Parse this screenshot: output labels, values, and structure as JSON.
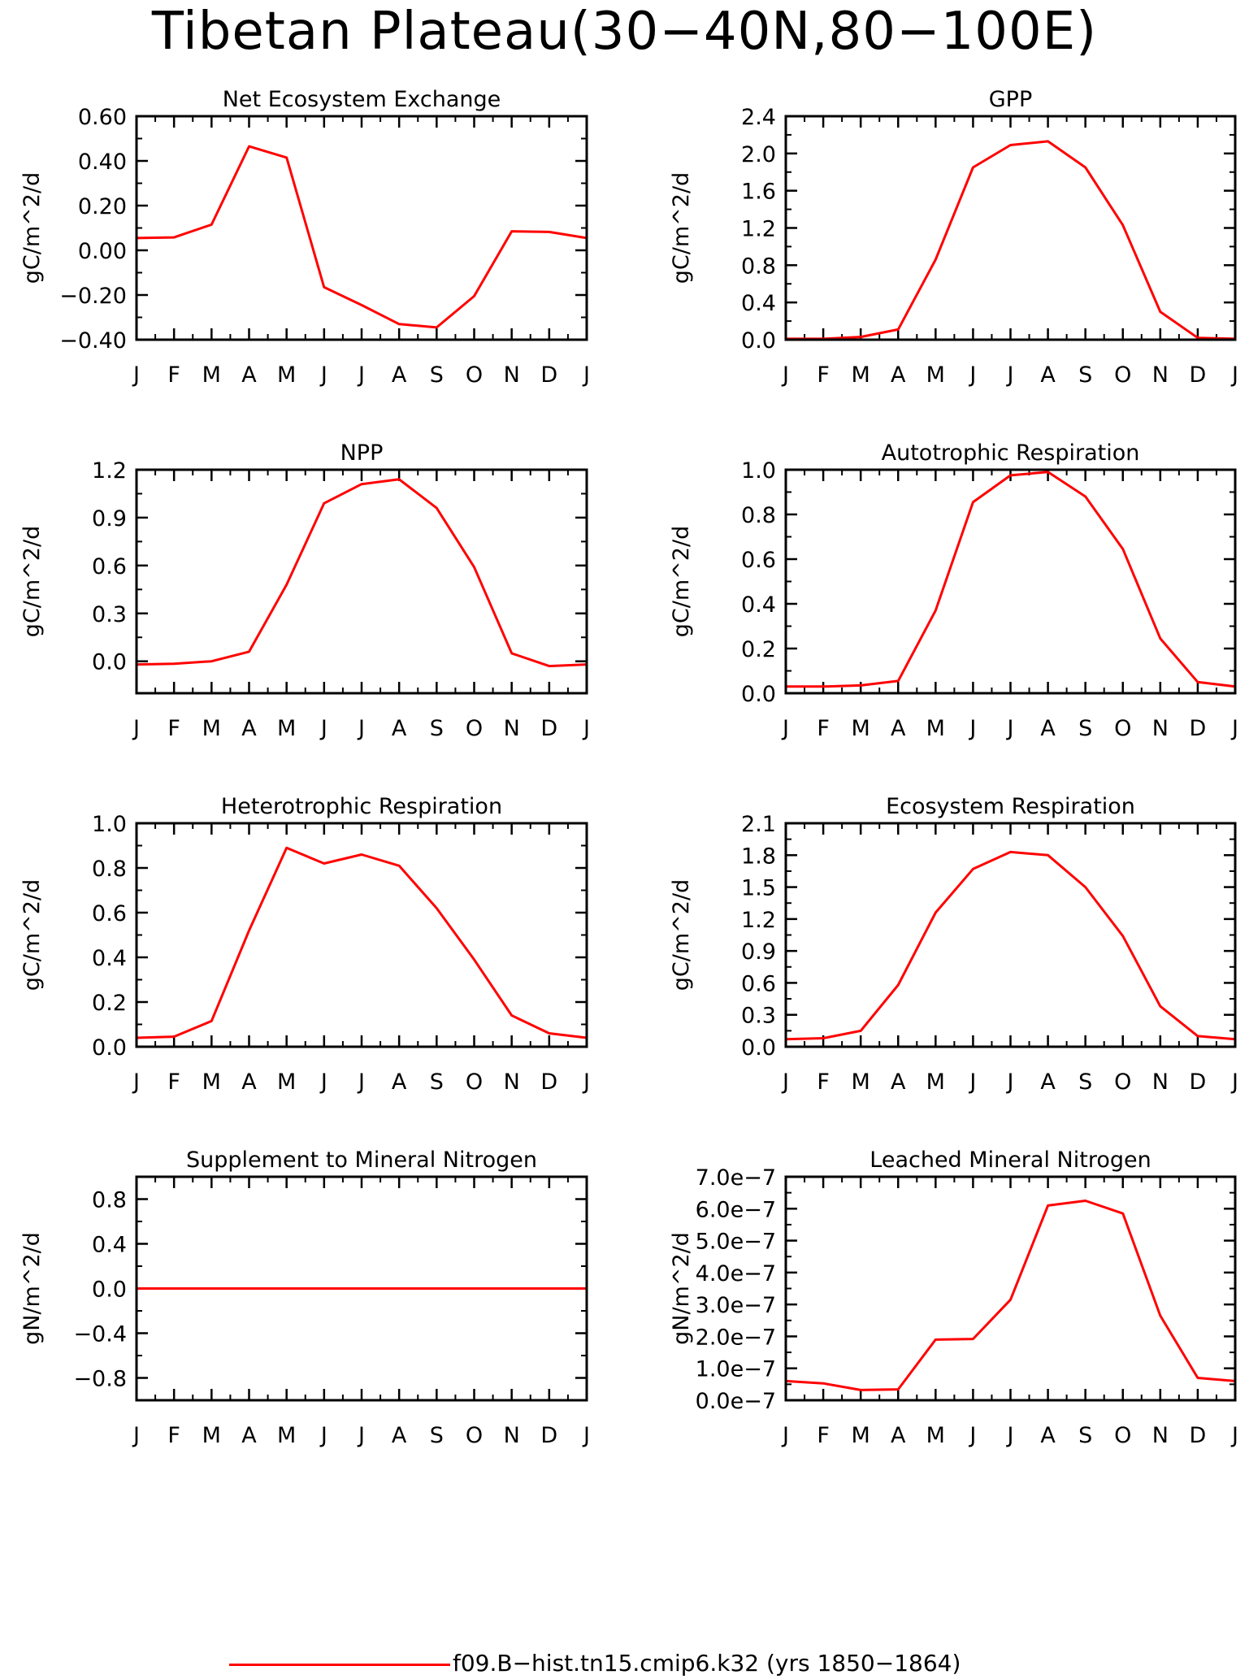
{
  "figure": {
    "title": "Tibetan Plateau(30−40N,80−100E)",
    "line_color": "#ff0000",
    "legend_label": "f09.B−hist.tn15.cmip6.k32 (yrs 1850−1864)"
  },
  "chart_data": [
    {
      "type": "line",
      "title": "Net Ecosystem Exchange",
      "ylabel": "gC/m^2/d",
      "categories": [
        "J",
        "F",
        "M",
        "A",
        "M",
        "J",
        "J",
        "A",
        "S",
        "O",
        "N",
        "D",
        "J"
      ],
      "yticks": [
        "0.60",
        "0.40",
        "0.20",
        "0.00",
        "−0.20",
        "−0.40"
      ],
      "ylim": [
        -0.4,
        0.6
      ],
      "series": [
        {
          "values": [
            0.055,
            0.058,
            0.115,
            0.465,
            0.415,
            -0.165,
            -0.245,
            -0.33,
            -0.345,
            -0.205,
            0.085,
            0.082,
            0.055
          ]
        }
      ]
    },
    {
      "type": "line",
      "title": "GPP",
      "ylabel": "gC/m^2/d",
      "categories": [
        "J",
        "F",
        "M",
        "A",
        "M",
        "J",
        "J",
        "A",
        "S",
        "O",
        "N",
        "D",
        "J"
      ],
      "yticks": [
        "2.4",
        "2.0",
        "1.6",
        "1.2",
        "0.8",
        "0.4",
        "0.0"
      ],
      "ylim": [
        0,
        2.4
      ],
      "series": [
        {
          "values": [
            0.01,
            0.01,
            0.03,
            0.11,
            0.86,
            1.85,
            2.09,
            2.13,
            1.85,
            1.23,
            0.3,
            0.02,
            0.01
          ]
        }
      ]
    },
    {
      "type": "line",
      "title": "NPP",
      "ylabel": "gC/m^2/d",
      "categories": [
        "J",
        "F",
        "M",
        "A",
        "M",
        "J",
        "J",
        "A",
        "S",
        "O",
        "N",
        "D",
        "J"
      ],
      "yticks": [
        "1.2",
        "0.9",
        "0.6",
        "0.3",
        "0.0"
      ],
      "ylim": [
        -0.2,
        1.2
      ],
      "series": [
        {
          "values": [
            -0.02,
            -0.015,
            0.0,
            0.06,
            0.48,
            0.99,
            1.11,
            1.14,
            0.96,
            0.59,
            0.05,
            -0.03,
            -0.02
          ]
        }
      ]
    },
    {
      "type": "line",
      "title": "Autotrophic Respiration",
      "ylabel": "gC/m^2/d",
      "categories": [
        "J",
        "F",
        "M",
        "A",
        "M",
        "J",
        "J",
        "A",
        "S",
        "O",
        "N",
        "D",
        "J"
      ],
      "yticks": [
        "1.0",
        "0.8",
        "0.6",
        "0.4",
        "0.2",
        "0.0"
      ],
      "ylim": [
        0,
        1.0
      ],
      "series": [
        {
          "values": [
            0.03,
            0.03,
            0.035,
            0.055,
            0.37,
            0.855,
            0.975,
            0.99,
            0.88,
            0.645,
            0.245,
            0.05,
            0.03
          ]
        }
      ]
    },
    {
      "type": "line",
      "title": "Heterotrophic Respiration",
      "ylabel": "gC/m^2/d",
      "categories": [
        "J",
        "F",
        "M",
        "A",
        "M",
        "J",
        "J",
        "A",
        "S",
        "O",
        "N",
        "D",
        "J"
      ],
      "yticks": [
        "1.0",
        "0.8",
        "0.6",
        "0.4",
        "0.2",
        "0.0"
      ],
      "ylim": [
        0,
        1.0
      ],
      "series": [
        {
          "values": [
            0.04,
            0.045,
            0.115,
            0.52,
            0.89,
            0.82,
            0.86,
            0.81,
            0.62,
            0.39,
            0.14,
            0.06,
            0.04
          ]
        }
      ]
    },
    {
      "type": "line",
      "title": "Ecosystem Respiration",
      "ylabel": "gC/m^2/d",
      "categories": [
        "J",
        "F",
        "M",
        "A",
        "M",
        "J",
        "J",
        "A",
        "S",
        "O",
        "N",
        "D",
        "J"
      ],
      "yticks": [
        "2.1",
        "1.8",
        "1.5",
        "1.2",
        "0.9",
        "0.6",
        "0.3",
        "0.0"
      ],
      "ylim": [
        0,
        2.1
      ],
      "series": [
        {
          "values": [
            0.07,
            0.08,
            0.15,
            0.58,
            1.26,
            1.67,
            1.83,
            1.8,
            1.5,
            1.04,
            0.38,
            0.1,
            0.07
          ]
        }
      ]
    },
    {
      "type": "line",
      "title": "Supplement to Mineral Nitrogen",
      "ylabel": "gN/m^2/d",
      "categories": [
        "J",
        "F",
        "M",
        "A",
        "M",
        "J",
        "J",
        "A",
        "S",
        "O",
        "N",
        "D",
        "J"
      ],
      "yticks": [
        "0.8",
        "0.4",
        "0.0",
        "−0.4",
        "−0.8"
      ],
      "ylim": [
        -1.0,
        1.0
      ],
      "series": [
        {
          "values": [
            0,
            0,
            0,
            0,
            0,
            0,
            0,
            0,
            0,
            0,
            0,
            0,
            0
          ]
        }
      ]
    },
    {
      "type": "line",
      "title": "Leached Mineral Nitrogen",
      "ylabel": "gN/m^2/d",
      "categories": [
        "J",
        "F",
        "M",
        "A",
        "M",
        "J",
        "J",
        "A",
        "S",
        "O",
        "N",
        "D",
        "J"
      ],
      "yticks": [
        "7.0e−7",
        "6.0e−7",
        "5.0e−7",
        "4.0e−7",
        "3.0e−7",
        "2.0e−7",
        "1.0e−7",
        "0.0e−7"
      ],
      "ylim": [
        0,
        7e-07
      ],
      "series": [
        {
          "values": [
            6e-08,
            5.3e-08,
            3.2e-08,
            3.4e-08,
            1.9e-07,
            1.92e-07,
            3.15e-07,
            6.1e-07,
            6.25e-07,
            5.85e-07,
            2.65e-07,
            7e-08,
            6e-08
          ]
        }
      ]
    }
  ]
}
